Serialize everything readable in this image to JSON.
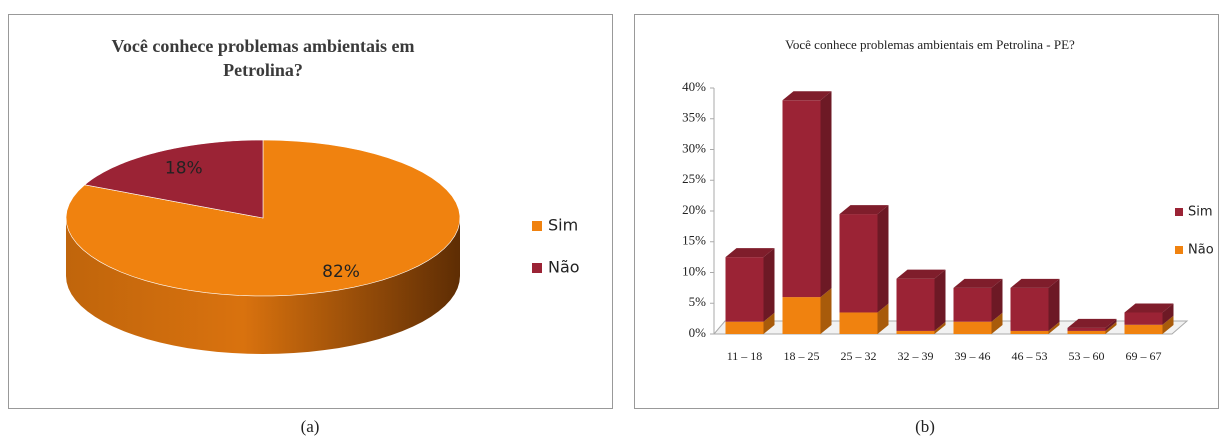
{
  "chart_data": [
    {
      "type": "pie",
      "title": "Você conhece problemas ambientais em Petrolina?",
      "categories": [
        "Sim",
        "Não"
      ],
      "values": [
        82,
        18
      ],
      "value_labels": [
        "82%",
        "18%"
      ],
      "colors": [
        "#f0820f",
        "#9b2335"
      ]
    },
    {
      "type": "bar",
      "title": "Você conhece problemas ambientais em Petrolina - PE?",
      "categories": [
        "11 – 18",
        "18 – 25",
        "25 – 32",
        "32 – 39",
        "39 – 46",
        "46 – 53",
        "53 – 60",
        "69 – 67"
      ],
      "series": [
        {
          "name": "Sim",
          "color": "#9b2335",
          "values": [
            10.5,
            32,
            16,
            8.5,
            5.5,
            7,
            0.5,
            2
          ]
        },
        {
          "name": "Não",
          "color": "#f0820f",
          "values": [
            2,
            6,
            3.5,
            0.5,
            2,
            0.5,
            0.5,
            1.5
          ]
        }
      ],
      "ylim": [
        0,
        40
      ],
      "yticks": [
        {
          "value": 0,
          "label": "0%"
        },
        {
          "value": 5,
          "label": "5%"
        },
        {
          "value": 10,
          "label": "10%"
        },
        {
          "value": 15,
          "label": "15%"
        },
        {
          "value": 20,
          "label": "20%"
        },
        {
          "value": 25,
          "label": "25%"
        },
        {
          "value": 30,
          "label": "30%"
        },
        {
          "value": 35,
          "label": "35%"
        },
        {
          "value": 40,
          "label": "40%"
        }
      ],
      "stacked": true
    }
  ],
  "captions": [
    "(a)",
    "(b)"
  ]
}
